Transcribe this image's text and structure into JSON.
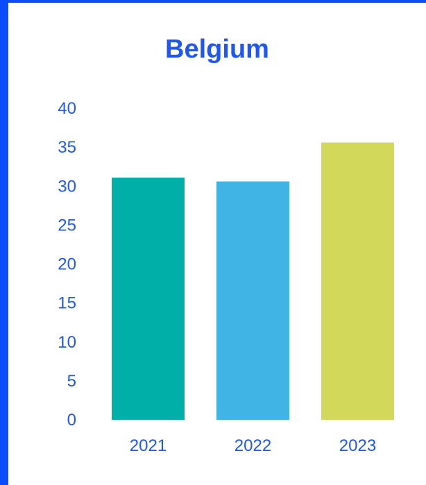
{
  "chart_data": {
    "type": "bar",
    "title": "Belgium",
    "categories": [
      "2021",
      "2022",
      "2023"
    ],
    "values": [
      31.1,
      30.6,
      35.6
    ],
    "colors": [
      "#00b0a8",
      "#40b4e4",
      "#d2d85a"
    ],
    "ylim": [
      0,
      40
    ],
    "yticks": [
      0,
      5,
      10,
      15,
      20,
      25,
      30,
      35,
      40
    ],
    "xlabel": "",
    "ylabel": "",
    "grid": false,
    "legend": "none",
    "text_color": "#1f57f5",
    "frame_color": "#0a4cff"
  }
}
